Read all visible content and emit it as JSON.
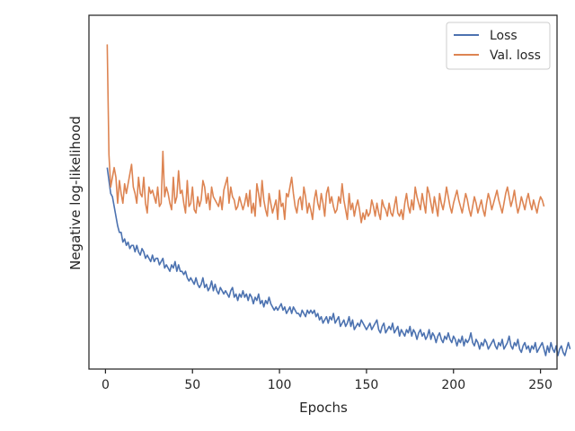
{
  "chart_data": {
    "type": "line",
    "title": "",
    "xlabel": "Epochs",
    "ylabel": "Negative log-likelihood",
    "xlim": [
      -9.5,
      259.5
    ],
    "ylim": [
      0,
      1
    ],
    "x_ticks": [
      0,
      50,
      100,
      150,
      200,
      250
    ],
    "y_ticks_visible": false,
    "grid": false,
    "legend": "top-right",
    "series": [
      {
        "name": "Loss",
        "color": "#4c72b0",
        "x_start": 1,
        "values": [
          0.58,
          0.54,
          0.5,
          0.49,
          0.46,
          0.43,
          0.4,
          0.38,
          0.38,
          0.35,
          0.36,
          0.34,
          0.35,
          0.33,
          0.34,
          0.34,
          0.32,
          0.34,
          0.32,
          0.31,
          0.33,
          0.32,
          0.3,
          0.31,
          0.3,
          0.29,
          0.31,
          0.29,
          0.3,
          0.3,
          0.28,
          0.29,
          0.3,
          0.27,
          0.28,
          0.27,
          0.26,
          0.28,
          0.27,
          0.29,
          0.26,
          0.28,
          0.26,
          0.26,
          0.25,
          0.26,
          0.24,
          0.23,
          0.24,
          0.23,
          0.22,
          0.24,
          0.22,
          0.21,
          0.22,
          0.24,
          0.21,
          0.22,
          0.2,
          0.21,
          0.23,
          0.2,
          0.22,
          0.2,
          0.19,
          0.21,
          0.2,
          0.19,
          0.2,
          0.19,
          0.18,
          0.2,
          0.21,
          0.18,
          0.19,
          0.17,
          0.19,
          0.18,
          0.2,
          0.18,
          0.19,
          0.17,
          0.19,
          0.18,
          0.16,
          0.18,
          0.17,
          0.19,
          0.16,
          0.17,
          0.15,
          0.17,
          0.16,
          0.18,
          0.16,
          0.15,
          0.14,
          0.15,
          0.14,
          0.15,
          0.16,
          0.14,
          0.15,
          0.13,
          0.14,
          0.15,
          0.13,
          0.15,
          0.14,
          0.13,
          0.13,
          0.12,
          0.14,
          0.13,
          0.12,
          0.14,
          0.13,
          0.14,
          0.13,
          0.14,
          0.12,
          0.13,
          0.11,
          0.12,
          0.1,
          0.11,
          0.12,
          0.1,
          0.12,
          0.11,
          0.13,
          0.1,
          0.11,
          0.12,
          0.09,
          0.1,
          0.11,
          0.09,
          0.1,
          0.12,
          0.09,
          0.11,
          0.08,
          0.09,
          0.1,
          0.09,
          0.11,
          0.1,
          0.09,
          0.08,
          0.09,
          0.1,
          0.08,
          0.09,
          0.1,
          0.11,
          0.08,
          0.07,
          0.09,
          0.1,
          0.07,
          0.08,
          0.09,
          0.08,
          0.1,
          0.07,
          0.08,
          0.09,
          0.06,
          0.08,
          0.07,
          0.06,
          0.08,
          0.07,
          0.09,
          0.06,
          0.08,
          0.07,
          0.05,
          0.07,
          0.08,
          0.06,
          0.07,
          0.05,
          0.06,
          0.08,
          0.05,
          0.07,
          0.06,
          0.04,
          0.06,
          0.07,
          0.05,
          0.04,
          0.06,
          0.05,
          0.07,
          0.05,
          0.04,
          0.06,
          0.05,
          0.03,
          0.05,
          0.04,
          0.06,
          0.03,
          0.05,
          0.04,
          0.05,
          0.07,
          0.04,
          0.03,
          0.05,
          0.04,
          0.02,
          0.04,
          0.03,
          0.05,
          0.04,
          0.02,
          0.03,
          0.04,
          0.05,
          0.03,
          0.02,
          0.04,
          0.03,
          0.05,
          0.02,
          0.03,
          0.04,
          0.06,
          0.03,
          0.02,
          0.04,
          0.03,
          0.05,
          0.02,
          0.01,
          0.03,
          0.04,
          0.02,
          0.03,
          0.01,
          0.03,
          0.02,
          0.04,
          0.01,
          0.02,
          0.03,
          0.04,
          0.02,
          0.0,
          0.03,
          0.01,
          0.04,
          0.02,
          0.01,
          0.03,
          0.0,
          0.02,
          0.03,
          0.01,
          0.0,
          0.02,
          0.04,
          0.02
        ]
      },
      {
        "name": "Val. loss",
        "color": "#dd8452",
        "x_start": 1,
        "values": [
          0.96,
          0.62,
          0.52,
          0.55,
          0.58,
          0.55,
          0.47,
          0.54,
          0.5,
          0.47,
          0.53,
          0.5,
          0.53,
          0.56,
          0.59,
          0.52,
          0.5,
          0.47,
          0.55,
          0.5,
          0.49,
          0.55,
          0.47,
          0.44,
          0.52,
          0.5,
          0.51,
          0.49,
          0.47,
          0.52,
          0.46,
          0.47,
          0.63,
          0.49,
          0.52,
          0.5,
          0.47,
          0.45,
          0.55,
          0.47,
          0.49,
          0.57,
          0.5,
          0.51,
          0.47,
          0.44,
          0.54,
          0.46,
          0.47,
          0.52,
          0.45,
          0.44,
          0.49,
          0.46,
          0.48,
          0.54,
          0.52,
          0.47,
          0.5,
          0.45,
          0.52,
          0.49,
          0.48,
          0.47,
          0.46,
          0.49,
          0.45,
          0.51,
          0.53,
          0.55,
          0.47,
          0.52,
          0.49,
          0.48,
          0.45,
          0.46,
          0.49,
          0.47,
          0.45,
          0.47,
          0.5,
          0.46,
          0.51,
          0.44,
          0.47,
          0.43,
          0.53,
          0.5,
          0.46,
          0.54,
          0.48,
          0.45,
          0.43,
          0.5,
          0.47,
          0.44,
          0.46,
          0.48,
          0.42,
          0.51,
          0.46,
          0.47,
          0.42,
          0.5,
          0.49,
          0.52,
          0.55,
          0.5,
          0.46,
          0.44,
          0.48,
          0.49,
          0.45,
          0.52,
          0.49,
          0.44,
          0.47,
          0.45,
          0.42,
          0.48,
          0.51,
          0.47,
          0.45,
          0.5,
          0.47,
          0.43,
          0.5,
          0.52,
          0.47,
          0.49,
          0.46,
          0.44,
          0.45,
          0.49,
          0.47,
          0.53,
          0.48,
          0.45,
          0.42,
          0.5,
          0.45,
          0.47,
          0.43,
          0.46,
          0.48,
          0.45,
          0.41,
          0.44,
          0.42,
          0.45,
          0.43,
          0.44,
          0.48,
          0.46,
          0.43,
          0.47,
          0.44,
          0.42,
          0.48,
          0.46,
          0.45,
          0.43,
          0.47,
          0.44,
          0.43,
          0.46,
          0.49,
          0.44,
          0.43,
          0.45,
          0.42,
          0.47,
          0.5,
          0.46,
          0.44,
          0.48,
          0.45,
          0.52,
          0.49,
          0.47,
          0.45,
          0.5,
          0.47,
          0.44,
          0.52,
          0.5,
          0.47,
          0.44,
          0.49,
          0.46,
          0.43,
          0.5,
          0.47,
          0.45,
          0.48,
          0.52,
          0.49,
          0.46,
          0.44,
          0.47,
          0.49,
          0.51,
          0.48,
          0.46,
          0.44,
          0.47,
          0.5,
          0.48,
          0.45,
          0.43,
          0.46,
          0.49,
          0.47,
          0.44,
          0.46,
          0.48,
          0.45,
          0.43,
          0.47,
          0.5,
          0.48,
          0.45,
          0.47,
          0.49,
          0.51,
          0.48,
          0.46,
          0.44,
          0.47,
          0.5,
          0.52,
          0.49,
          0.46,
          0.48,
          0.51,
          0.47,
          0.44,
          0.46,
          0.49,
          0.47,
          0.45,
          0.48,
          0.5,
          0.47,
          0.45,
          0.48,
          0.46,
          0.44,
          0.47,
          0.49,
          0.48,
          0.46
        ]
      }
    ]
  }
}
